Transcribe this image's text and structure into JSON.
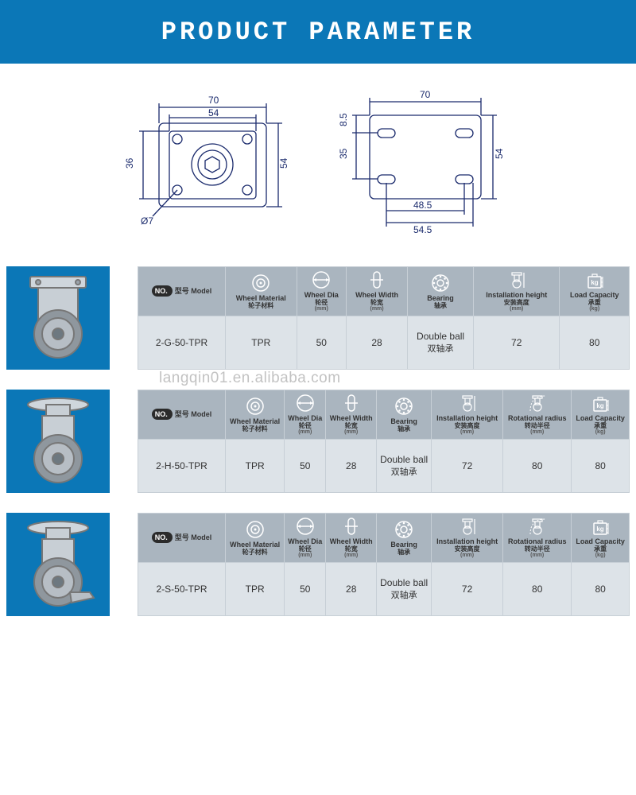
{
  "header": {
    "title": "PRODUCT PARAMETER",
    "bg": "#0b77b7",
    "fg": "#ffffff"
  },
  "watermark": "langqin01.en.alibaba.com",
  "diagram_left": {
    "w_outer": "70",
    "w_inner": "54",
    "h_inner": "36",
    "h_outer": "54",
    "hole": "Ø7"
  },
  "diagram_right": {
    "w_top": "70",
    "h_offset": "8.5",
    "h_inner": "35",
    "h_outer": "54",
    "w_inner": "48.5",
    "w_mid": "54.5"
  },
  "col_labels": {
    "model_en": "型号 Model",
    "material_en": "Wheel Material",
    "material_cn": "轮子材料",
    "dia_en": "Wheel Dia",
    "dia_cn": "轮径",
    "dia_unit": "(mm)",
    "width_en": "Wheel Width",
    "width_cn": "轮宽",
    "width_unit": "(mm)",
    "bearing_en": "Bearing",
    "bearing_cn": "轴承",
    "height_en": "Installation height",
    "height_cn": "安装高度",
    "height_unit": "(mm)",
    "radius_en": "Rotational radius",
    "radius_cn": "转动半径",
    "radius_unit": "(mm)",
    "load_en": "Load Capacity",
    "load_cn": "承重",
    "load_unit": "(kg)",
    "no_badge": "NO."
  },
  "products": [
    {
      "thumb_type": "rigid",
      "show_radius_col": false,
      "model": "2-G-50-TPR",
      "material": "TPR",
      "dia": "50",
      "width": "28",
      "bearing_en": "Double ball",
      "bearing_cn": "双轴承",
      "height": "72",
      "radius": "",
      "load": "80"
    },
    {
      "thumb_type": "swivel",
      "show_radius_col": true,
      "model": "2-H-50-TPR",
      "material": "TPR",
      "dia": "50",
      "width": "28",
      "bearing_en": "Double ball",
      "bearing_cn": "双轴承",
      "height": "72",
      "radius": "80",
      "load": "80"
    },
    {
      "thumb_type": "swivel_brake",
      "show_radius_col": true,
      "model": "2-S-50-TPR",
      "material": "TPR",
      "dia": "50",
      "width": "28",
      "bearing_en": "Double ball",
      "bearing_cn": "双轴承",
      "height": "72",
      "radius": "80",
      "load": "80"
    }
  ],
  "colors": {
    "table_head_bg": "#aab5bf",
    "table_body_bg": "#dde3e8",
    "table_border": "#c7cfd6",
    "thumb_bg": "#0b77b7",
    "diagram_stroke": "#1a2a6c"
  }
}
